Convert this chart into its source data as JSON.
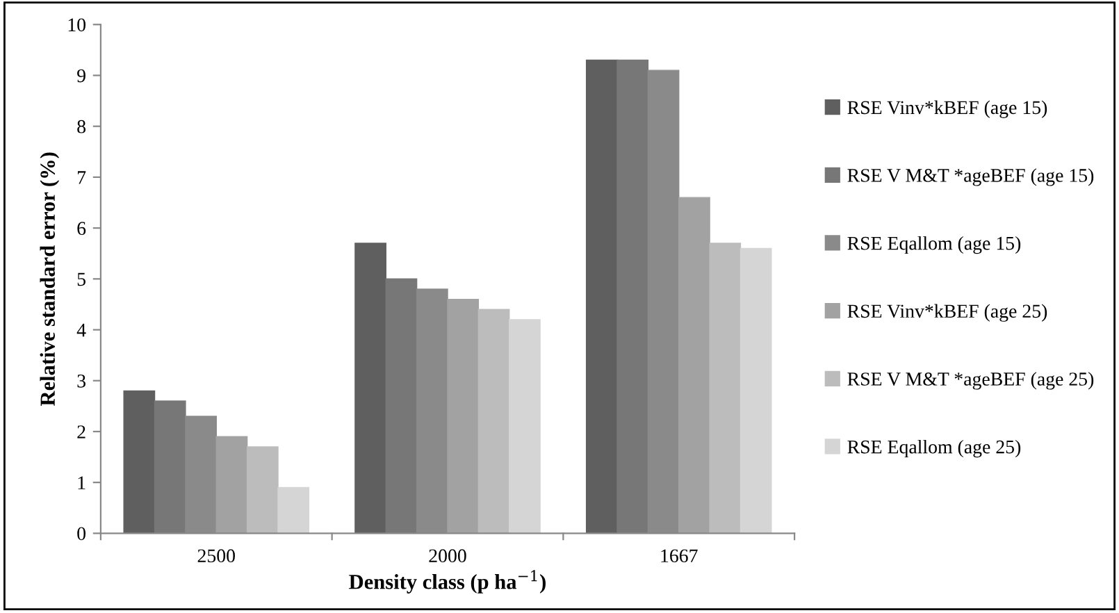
{
  "chart_data": {
    "type": "bar",
    "xlabel": "Density class (p ha$^{−1}$)",
    "ylabel": "Relative standard error (%)",
    "categories": [
      "2500",
      "2000",
      "1667"
    ],
    "series": [
      {
        "name": "RSE Vinv*kBEF (age 15)",
        "color": "#5f5f5f",
        "values": [
          2.8,
          5.7,
          9.3
        ]
      },
      {
        "name": "RSE V M&T *ageBEF (age 15)",
        "color": "#777777",
        "values": [
          2.6,
          5.0,
          9.3
        ]
      },
      {
        "name": "RSE Eqallom (age 15)",
        "color": "#8a8a8a",
        "values": [
          2.3,
          4.8,
          9.1
        ]
      },
      {
        "name": "RSE Vinv*kBEF (age 25)",
        "color": "#a2a2a2",
        "values": [
          1.9,
          4.6,
          6.6
        ]
      },
      {
        "name": "RSE V M&T *ageBEF (age 25)",
        "color": "#bcbcbc",
        "values": [
          1.7,
          4.4,
          5.7
        ]
      },
      {
        "name": "RSE Eqallom (age 25)",
        "color": "#d5d5d5",
        "values": [
          0.9,
          4.2,
          5.6
        ]
      }
    ],
    "ylim": [
      0,
      10
    ],
    "yticks": [
      0,
      1,
      2,
      3,
      4,
      5,
      6,
      7,
      8,
      9,
      10
    ],
    "grid": false,
    "legend": "right"
  }
}
